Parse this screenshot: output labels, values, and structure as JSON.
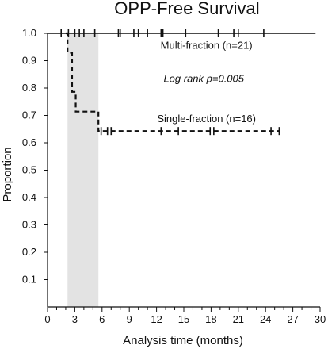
{
  "chart_data": {
    "type": "line",
    "title": "OPP-Free Survival",
    "xlabel": "Analysis time (months)",
    "ylabel": "Proportion",
    "xlim": [
      0,
      30
    ],
    "ylim": [
      0,
      1.0
    ],
    "x_ticks": [
      0,
      3,
      6,
      9,
      12,
      15,
      18,
      21,
      24,
      27,
      30
    ],
    "y_ticks": [
      0.1,
      0.2,
      0.3,
      0.4,
      0.5,
      0.6,
      0.7,
      0.8,
      0.9,
      1.0
    ],
    "shaded_region": [
      2.2,
      5.6
    ],
    "series": [
      {
        "name": "Multi-fraction (n=21)",
        "line": "solid",
        "x": [
          0,
          29.5
        ],
        "y": [
          1.0,
          1.0
        ],
        "censored": [
          1.5,
          2.3,
          3.0,
          3.5,
          4.0,
          5.2,
          7.8,
          8.0,
          9.5,
          10.0,
          11.0,
          12.5,
          12.7,
          15.2,
          18.8,
          20.5,
          21.0,
          23.8
        ]
      },
      {
        "name": "Single-fraction (n=16)",
        "line": "dashed",
        "x": [
          2.0,
          2.2,
          2.2,
          2.7,
          2.7,
          3.1,
          3.1,
          5.6,
          5.6,
          25.6
        ],
        "y": [
          1.0,
          1.0,
          0.929,
          0.929,
          0.786,
          0.786,
          0.714,
          0.714,
          0.643,
          0.643
        ],
        "censored": [
          5.9,
          6.6,
          7.0,
          12.5,
          14.4,
          17.9,
          18.3,
          24.6,
          25.5
        ]
      }
    ],
    "annotations": [
      {
        "text": "Multi-fraction (n=21)",
        "x": 17.5,
        "y": 0.955
      },
      {
        "text": "Log rank p=0.005",
        "x": 17.2,
        "y": 0.833,
        "italic": true
      },
      {
        "text": "Single-fraction (n=16)",
        "x": 17.5,
        "y": 0.687
      }
    ]
  }
}
